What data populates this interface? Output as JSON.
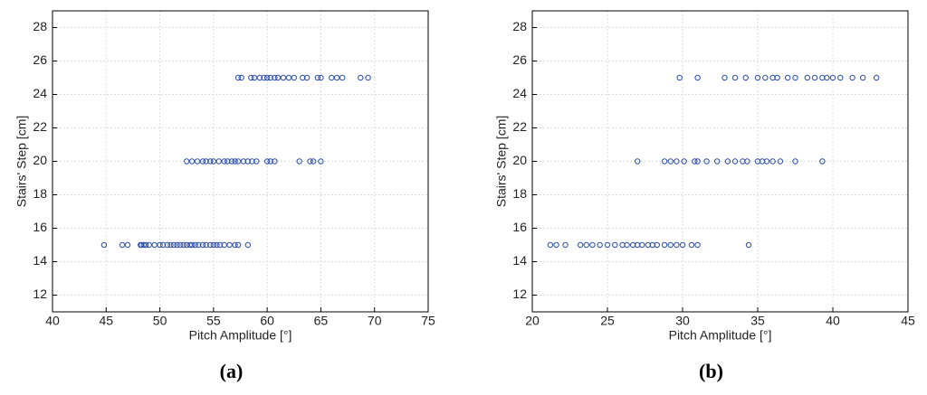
{
  "chart_data": [
    {
      "type": "scatter",
      "xlabel": "Pitch Amplitude [°]",
      "ylabel": "Stairs' Step [cm]",
      "label": "(a)",
      "color": "#2b4ea8",
      "grid": true,
      "xlim": [
        40,
        75
      ],
      "xticks": [
        40,
        45,
        50,
        55,
        60,
        65,
        70,
        75
      ],
      "ylim": [
        11,
        29
      ],
      "yticks": [
        12,
        14,
        16,
        18,
        20,
        22,
        24,
        26,
        28
      ],
      "x": [
        44.8,
        46.5,
        47,
        48.2,
        48.3,
        48.5,
        48.7,
        49,
        49.5,
        50,
        50.3,
        50.7,
        51,
        51.3,
        51.6,
        51.9,
        52.2,
        52.5,
        52.8,
        53,
        53.3,
        53.6,
        54,
        54.3,
        54.7,
        55,
        55.3,
        55.6,
        56,
        56.5,
        57,
        57.3,
        58.2,
        52.5,
        53,
        53.5,
        54,
        54.3,
        54.7,
        55,
        55.5,
        56,
        56.3,
        56.7,
        57,
        57.3,
        57.8,
        58.2,
        58.6,
        59,
        60,
        60.3,
        60.7,
        63,
        64,
        64.3,
        65,
        57.3,
        57.6,
        58.5,
        58.8,
        59.3,
        59.7,
        60,
        60.3,
        60.7,
        61,
        61.5,
        62,
        62.5,
        63.3,
        63.7,
        64.7,
        65,
        66,
        66.5,
        67,
        68.7,
        69.4
      ],
      "values": [
        15,
        15,
        15,
        15,
        15,
        15,
        15,
        15,
        15,
        15,
        15,
        15,
        15,
        15,
        15,
        15,
        15,
        15,
        15,
        15,
        15,
        15,
        15,
        15,
        15,
        15,
        15,
        15,
        15,
        15,
        15,
        15,
        15,
        20,
        20,
        20,
        20,
        20,
        20,
        20,
        20,
        20,
        20,
        20,
        20,
        20,
        20,
        20,
        20,
        20,
        20,
        20,
        20,
        20,
        20,
        20,
        20,
        25,
        25,
        25,
        25,
        25,
        25,
        25,
        25,
        25,
        25,
        25,
        25,
        25,
        25,
        25,
        25,
        25,
        25,
        25,
        25,
        25,
        25
      ]
    },
    {
      "type": "scatter",
      "xlabel": "Pitch Amplitude [°]",
      "ylabel": "Stairs' Step [cm]",
      "label": "(b)",
      "color": "#2b4ea8",
      "grid": true,
      "xlim": [
        20,
        45
      ],
      "xticks": [
        20,
        25,
        30,
        35,
        40,
        45
      ],
      "ylim": [
        11,
        29
      ],
      "yticks": [
        12,
        14,
        16,
        18,
        20,
        22,
        24,
        26,
        28
      ],
      "x": [
        21.2,
        21.6,
        22.2,
        23.2,
        23.6,
        24,
        24.5,
        25,
        25.5,
        26,
        26.3,
        26.7,
        27,
        27.3,
        27.7,
        28,
        28.3,
        28.8,
        29.2,
        29.6,
        30,
        30.6,
        31,
        34.4,
        27,
        28.8,
        29.2,
        29.6,
        30.1,
        30.8,
        31,
        31.6,
        32.3,
        33,
        33.5,
        34,
        34.3,
        35,
        35.3,
        35.6,
        36,
        36.5,
        37.5,
        39.3,
        29.8,
        31,
        32.8,
        33.5,
        34.2,
        35,
        35.5,
        36,
        36.3,
        37,
        37.5,
        38.3,
        38.8,
        39.3,
        39.6,
        40,
        40.5,
        41.3,
        42,
        42.9
      ],
      "values": [
        15,
        15,
        15,
        15,
        15,
        15,
        15,
        15,
        15,
        15,
        15,
        15,
        15,
        15,
        15,
        15,
        15,
        15,
        15,
        15,
        15,
        15,
        15,
        15,
        20,
        20,
        20,
        20,
        20,
        20,
        20,
        20,
        20,
        20,
        20,
        20,
        20,
        20,
        20,
        20,
        20,
        20,
        20,
        20,
        25,
        25,
        25,
        25,
        25,
        25,
        25,
        25,
        25,
        25,
        25,
        25,
        25,
        25,
        25,
        25,
        25,
        25,
        25,
        25
      ]
    }
  ]
}
